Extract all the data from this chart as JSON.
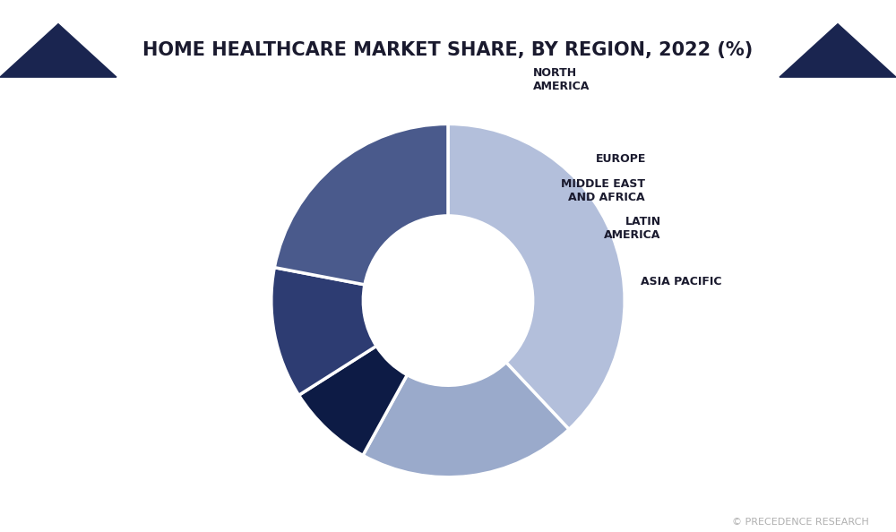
{
  "title": "HOME HEALTHCARE MARKET SHARE, BY REGION, 2022 (%)",
  "labels": [
    "NORTH\nAMERICA",
    "EUROPE",
    "MIDDLE EAST\nAND AFRICA",
    "LATIN\nAMERICA",
    "ASIA PACIFIC"
  ],
  "values": [
    38,
    20,
    8,
    12,
    22
  ],
  "colors": [
    "#b3bfdb",
    "#9aaacb",
    "#0d1b45",
    "#2d3c72",
    "#4a5a8c"
  ],
  "background_color": "#ffffff",
  "title_color": "#1a1a2e",
  "title_fontsize": 15,
  "label_fontsize": 9,
  "watermark": "© PRECEDENCE RESEARCH",
  "watermark_color": "#b0b0b0",
  "title_bg_color": "#e5e5e5",
  "header_tri_color": "#1a2550",
  "start_angle": 90
}
